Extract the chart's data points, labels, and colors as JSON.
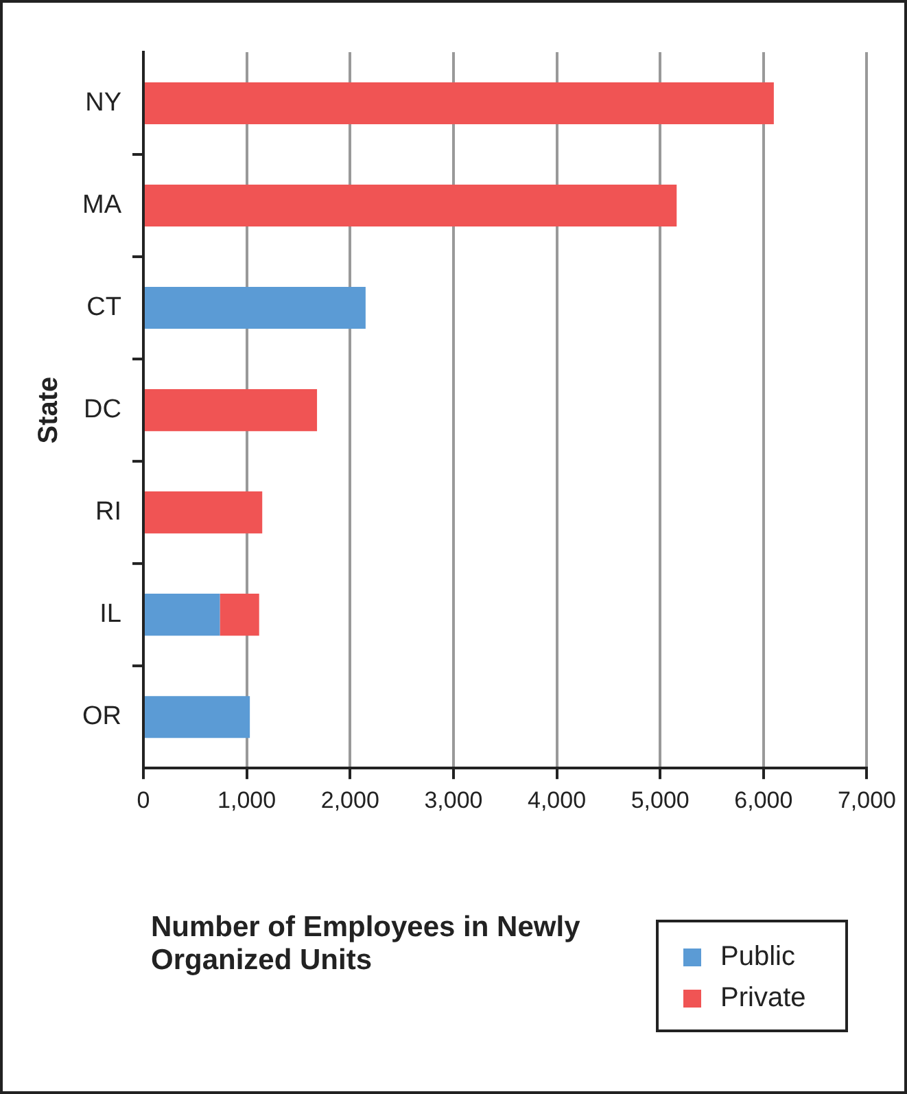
{
  "chart_data": {
    "type": "bar",
    "orientation": "horizontal",
    "stacked": true,
    "xlabel": "Number of Employees in Newly Organized Units",
    "ylabel": "State",
    "categories": [
      "NY",
      "MA",
      "CT",
      "DC",
      "RI",
      "IL",
      "OR"
    ],
    "series": [
      {
        "name": "Public",
        "color": "#5b9bd5",
        "values": [
          null,
          null,
          2150,
          null,
          null,
          740,
          1030
        ]
      },
      {
        "name": "Private",
        "color": "#f05454",
        "values": [
          6100,
          5160,
          null,
          1680,
          1150,
          380,
          null
        ]
      }
    ],
    "xlim": [
      0,
      7000
    ],
    "xticks": [
      {
        "value": 0,
        "label": "0"
      },
      {
        "value": 1000,
        "label": "1,000"
      },
      {
        "value": 2000,
        "label": "2,000"
      },
      {
        "value": 3000,
        "label": "3,000"
      },
      {
        "value": 4000,
        "label": "4,000"
      },
      {
        "value": 5000,
        "label": "5,000"
      },
      {
        "value": 6000,
        "label": "6,000"
      },
      {
        "value": 7000,
        "label": "7,000"
      }
    ],
    "grid": "x",
    "legend": "bottom right"
  }
}
